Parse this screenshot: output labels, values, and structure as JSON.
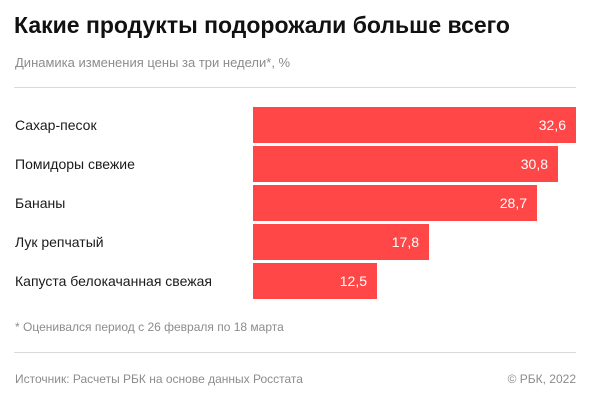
{
  "header": {
    "title": "Какие продукты подорожали больше всего",
    "subtitle": "Динамика изменения цены за три недели*, %"
  },
  "footer": {
    "footnote": "* Оценивался период с 26 февраля по 18 марта",
    "source": "Источник: Расчеты РБК на основе данных Росстата",
    "copyright": "© РБК, 2022"
  },
  "colors": {
    "bar": "#ff4747",
    "value_text": "#ffffff"
  },
  "chart_data": {
    "type": "bar",
    "orientation": "horizontal",
    "title": "Какие продукты подорожали больше всего",
    "subtitle": "Динамика изменения цены за три недели*, %",
    "categories": [
      "Сахар-песок",
      "Помидоры свежие",
      "Бананы",
      "Лук репчатый",
      "Капуста белокачанная свежая"
    ],
    "values": [
      32.6,
      30.8,
      28.7,
      17.8,
      12.5
    ],
    "value_labels": [
      "32,6",
      "30,8",
      "28,7",
      "17,8",
      "12,5"
    ],
    "xlim": [
      0,
      32.6
    ],
    "grid": false,
    "legend": "none"
  }
}
